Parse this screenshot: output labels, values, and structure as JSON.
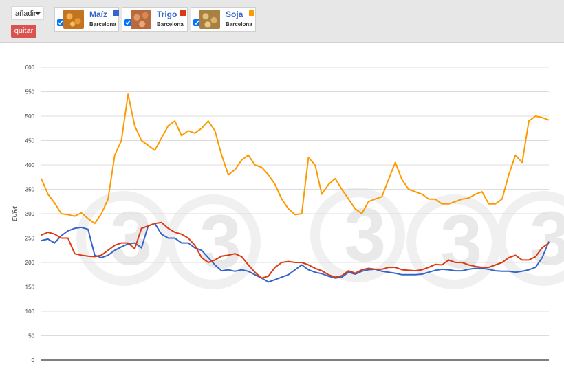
{
  "toolbar": {
    "add_label": "añadir",
    "remove_label": "quitar",
    "products": [
      {
        "name": "Maíz",
        "market": "Barcelona",
        "color": "#3366cc",
        "checked": true,
        "thumb_color": "#d98a2b",
        "icon": "corn-grains-thumbnail"
      },
      {
        "name": "Trigo",
        "market": "Barcelona",
        "color": "#dc3912",
        "checked": true,
        "thumb_color": "#cc7f4f",
        "icon": "wheat-grains-thumbnail"
      },
      {
        "name": "Soja",
        "market": "Barcelona",
        "color": "#ff9900",
        "checked": true,
        "thumb_color": "#c9a15e",
        "icon": "soy-beans-thumbnail"
      }
    ]
  },
  "chart_data": {
    "type": "line",
    "ylabel": "EUR/t",
    "xlabel": "",
    "ylim": [
      0,
      600
    ],
    "yticks": [
      0,
      50,
      100,
      150,
      200,
      250,
      300,
      350,
      400,
      450,
      500,
      550,
      600
    ],
    "grid": true,
    "watermark": "3",
    "series": [
      {
        "name": "Maíz",
        "color": "#3366cc",
        "values": [
          245,
          248,
          240,
          255,
          265,
          270,
          272,
          268,
          215,
          210,
          215,
          225,
          232,
          238,
          240,
          230,
          275,
          280,
          258,
          250,
          250,
          240,
          240,
          230,
          225,
          210,
          195,
          183,
          185,
          182,
          185,
          182,
          175,
          168,
          160,
          165,
          170,
          175,
          185,
          195,
          185,
          180,
          177,
          172,
          168,
          170,
          180,
          176,
          182,
          185,
          186,
          182,
          180,
          178,
          175,
          175,
          175,
          176,
          180,
          184,
          186,
          185,
          183,
          183,
          186,
          188,
          188,
          186,
          183,
          182,
          182,
          180,
          182,
          185,
          190,
          210,
          243
        ]
      },
      {
        "name": "Trigo",
        "color": "#dc3912",
        "values": [
          256,
          262,
          258,
          250,
          250,
          218,
          215,
          213,
          212,
          215,
          225,
          235,
          240,
          240,
          228,
          270,
          275,
          280,
          282,
          270,
          262,
          258,
          250,
          235,
          210,
          200,
          205,
          213,
          215,
          218,
          212,
          195,
          180,
          168,
          172,
          190,
          200,
          202,
          200,
          200,
          195,
          188,
          183,
          175,
          170,
          173,
          183,
          178,
          185,
          188,
          186,
          186,
          190,
          190,
          185,
          184,
          183,
          185,
          190,
          196,
          195,
          205,
          200,
          200,
          195,
          192,
          190,
          190,
          195,
          200,
          210,
          215,
          205,
          205,
          212,
          230,
          240
        ]
      },
      {
        "name": "Soja",
        "color": "#ff9900",
        "values": [
          372,
          340,
          322,
          300,
          298,
          295,
          302,
          290,
          280,
          300,
          330,
          420,
          450,
          545,
          480,
          450,
          440,
          430,
          455,
          480,
          490,
          460,
          470,
          465,
          475,
          490,
          470,
          420,
          380,
          390,
          410,
          420,
          400,
          395,
          380,
          360,
          330,
          310,
          298,
          300,
          415,
          400,
          340,
          360,
          372,
          350,
          330,
          310,
          300,
          325,
          330,
          335,
          370,
          405,
          370,
          350,
          345,
          340,
          330,
          330,
          320,
          320,
          325,
          330,
          332,
          340,
          345,
          320,
          320,
          330,
          380,
          420,
          405,
          490,
          500,
          497,
          492
        ]
      }
    ]
  }
}
